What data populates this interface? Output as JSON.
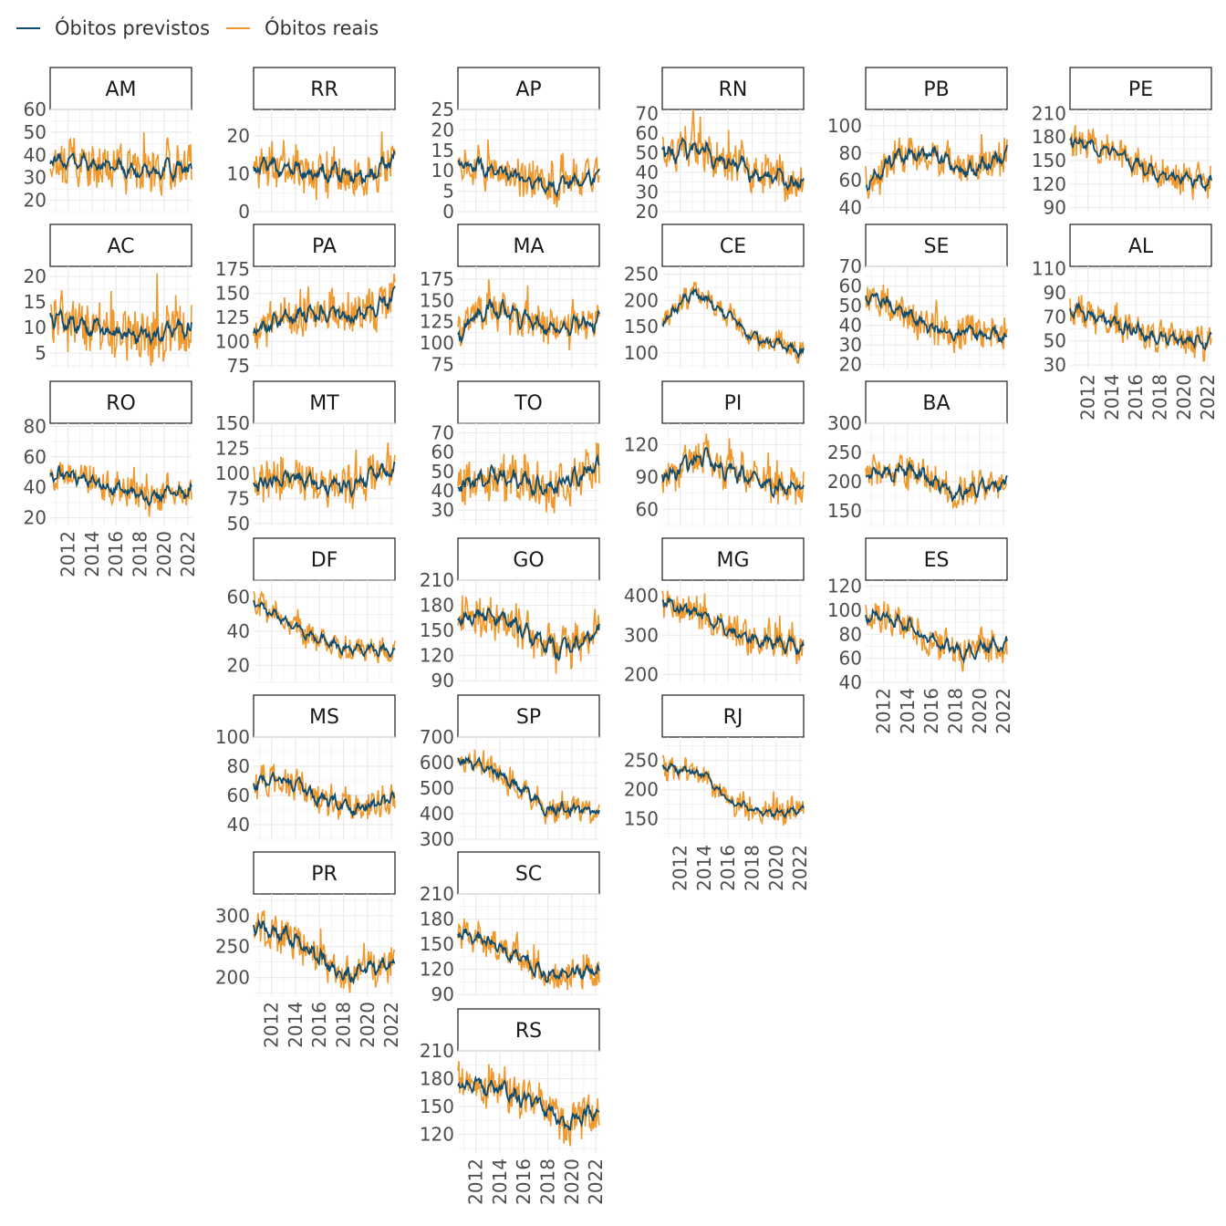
{
  "legend": {
    "predicted_label": "Óbitos previstos",
    "actual_label": "Óbitos reais"
  },
  "colors": {
    "predicted": "#0f4c6e",
    "actual": "#f0982c",
    "grid": "#ebebeb",
    "strip_border": "#1a1a1a",
    "text": "#4d4d4d"
  },
  "chart_data": {
    "type": "line",
    "layout": "geofacet small multiples (map of Brazil)",
    "series_names": [
      "Óbitos previstos",
      "Óbitos reais"
    ],
    "x_axis": {
      "min": 2010.5,
      "max": 2022.3,
      "ticks": [
        "2012",
        "2014",
        "2016",
        "2018",
        "2020",
        "2022"
      ]
    },
    "grid": true,
    "legend_position": "top-left",
    "panels": [
      {
        "id": "AM",
        "row": 0,
        "col": 0,
        "ylim": [
          15,
          60
        ],
        "yticks": [
          20,
          30,
          40,
          50,
          60
        ],
        "trend": [
          [
            2010.5,
            38
          ],
          [
            2013,
            37
          ],
          [
            2016,
            34
          ],
          [
            2019,
            33
          ],
          [
            2022.3,
            34
          ]
        ],
        "pred_noise": 3,
        "act_noise": 9,
        "x_axis": false
      },
      {
        "id": "RR",
        "row": 0,
        "col": 1,
        "ylim": [
          0,
          27
        ],
        "yticks": [
          0,
          10,
          20
        ],
        "trend": [
          [
            2010.5,
            12
          ],
          [
            2014,
            11
          ],
          [
            2017,
            10
          ],
          [
            2020,
            9
          ],
          [
            2022.3,
            14
          ]
        ],
        "pred_noise": 2,
        "act_noise": 5,
        "x_axis": false
      },
      {
        "id": "AP",
        "row": 0,
        "col": 2,
        "ylim": [
          0,
          25
        ],
        "yticks": [
          0,
          5,
          10,
          15,
          20,
          25
        ],
        "trend": [
          [
            2010.5,
            12
          ],
          [
            2014,
            10
          ],
          [
            2018,
            6
          ],
          [
            2022.3,
            9
          ]
        ],
        "pred_noise": 1.5,
        "act_noise": 4,
        "x_axis": false
      },
      {
        "id": "RN",
        "row": 0,
        "col": 3,
        "ylim": [
          20,
          72
        ],
        "yticks": [
          20,
          30,
          40,
          50,
          60,
          70
        ],
        "trend": [
          [
            2010.5,
            51
          ],
          [
            2014,
            50
          ],
          [
            2018,
            40
          ],
          [
            2022.3,
            33
          ]
        ],
        "pred_noise": 4,
        "act_noise": 9,
        "x_axis": false
      },
      {
        "id": "PB",
        "row": 0,
        "col": 4,
        "ylim": [
          37,
          112
        ],
        "yticks": [
          40,
          60,
          80,
          100
        ],
        "trend": [
          [
            2010.5,
            58
          ],
          [
            2013,
            78
          ],
          [
            2016,
            80
          ],
          [
            2019,
            65
          ],
          [
            2022.3,
            80
          ]
        ],
        "pred_noise": 5,
        "act_noise": 12,
        "x_axis": false
      },
      {
        "id": "PE",
        "row": 0,
        "col": 5,
        "ylim": [
          85,
          215
        ],
        "yticks": [
          90,
          120,
          150,
          180,
          210
        ],
        "trend": [
          [
            2010.5,
            175
          ],
          [
            2014,
            160
          ],
          [
            2018,
            130
          ],
          [
            2022.3,
            122
          ]
        ],
        "pred_noise": 7,
        "act_noise": 18,
        "x_axis": false
      },
      {
        "id": "AC",
        "row": 1,
        "col": 0,
        "ylim": [
          2,
          22
        ],
        "yticks": [
          5,
          10,
          15,
          20
        ],
        "trend": [
          [
            2010.5,
            12
          ],
          [
            2014,
            10
          ],
          [
            2018,
            8
          ],
          [
            2022.3,
            10
          ]
        ],
        "pred_noise": 1.5,
        "act_noise": 5,
        "x_axis": false
      },
      {
        "id": "PA",
        "row": 1,
        "col": 1,
        "ylim": [
          72,
          178
        ],
        "yticks": [
          75,
          100,
          125,
          150,
          175
        ],
        "trend": [
          [
            2010.5,
            110
          ],
          [
            2013,
            125
          ],
          [
            2016,
            130
          ],
          [
            2019,
            125
          ],
          [
            2022.3,
            145
          ]
        ],
        "pred_noise": 8,
        "act_noise": 20,
        "x_axis": false
      },
      {
        "id": "MA",
        "row": 1,
        "col": 2,
        "ylim": [
          70,
          190
        ],
        "yticks": [
          75,
          100,
          125,
          150,
          175
        ],
        "trend": [
          [
            2010.5,
            110
          ],
          [
            2013,
            140
          ],
          [
            2016,
            130
          ],
          [
            2019,
            115
          ],
          [
            2022.3,
            125
          ]
        ],
        "pred_noise": 9,
        "act_noise": 20,
        "x_axis": false
      },
      {
        "id": "CE",
        "row": 1,
        "col": 3,
        "ylim": [
          70,
          265
        ],
        "yticks": [
          100,
          150,
          200,
          250
        ],
        "trend": [
          [
            2010.5,
            160
          ],
          [
            2013,
            215
          ],
          [
            2015,
            190
          ],
          [
            2018,
            130
          ],
          [
            2022.3,
            100
          ]
        ],
        "pred_noise": 9,
        "act_noise": 18,
        "x_axis": false
      },
      {
        "id": "SE",
        "row": 1,
        "col": 4,
        "ylim": [
          18,
          70
        ],
        "yticks": [
          20,
          30,
          40,
          50,
          60,
          70
        ],
        "trend": [
          [
            2010.5,
            55
          ],
          [
            2013,
            50
          ],
          [
            2016,
            38
          ],
          [
            2022.3,
            34
          ]
        ],
        "pred_noise": 3,
        "act_noise": 8,
        "x_axis": false
      },
      {
        "id": "AL",
        "row": 1,
        "col": 5,
        "ylim": [
          27,
          112
        ],
        "yticks": [
          30,
          50,
          70,
          90,
          110
        ],
        "trend": [
          [
            2010.5,
            75
          ],
          [
            2014,
            65
          ],
          [
            2018,
            52
          ],
          [
            2022.3,
            50
          ]
        ],
        "pred_noise": 5,
        "act_noise": 11,
        "x_axis": true
      },
      {
        "id": "RO",
        "row": 2,
        "col": 0,
        "ylim": [
          15,
          82
        ],
        "yticks": [
          20,
          40,
          60,
          80
        ],
        "trend": [
          [
            2010.5,
            50
          ],
          [
            2014,
            45
          ],
          [
            2018,
            33
          ],
          [
            2022.3,
            38
          ]
        ],
        "pred_noise": 4,
        "act_noise": 9,
        "x_axis": true
      },
      {
        "id": "MT",
        "row": 2,
        "col": 1,
        "ylim": [
          48,
          150
        ],
        "yticks": [
          50,
          75,
          100,
          125,
          150
        ],
        "trend": [
          [
            2010.5,
            88
          ],
          [
            2014,
            95
          ],
          [
            2018,
            85
          ],
          [
            2022.3,
            105
          ]
        ],
        "pred_noise": 7,
        "act_noise": 17,
        "x_axis": false
      },
      {
        "id": "TO",
        "row": 2,
        "col": 2,
        "ylim": [
          22,
          75
        ],
        "yticks": [
          30,
          40,
          50,
          60,
          70
        ],
        "trend": [
          [
            2010.5,
            42
          ],
          [
            2014,
            48
          ],
          [
            2018,
            42
          ],
          [
            2022.3,
            52
          ]
        ],
        "pred_noise": 4,
        "act_noise": 11,
        "x_axis": false
      },
      {
        "id": "PI",
        "row": 2,
        "col": 3,
        "ylim": [
          45,
          140
        ],
        "yticks": [
          60,
          90,
          120
        ],
        "trend": [
          [
            2010.5,
            90
          ],
          [
            2014,
            110
          ],
          [
            2018,
            85
          ],
          [
            2022.3,
            78
          ]
        ],
        "pred_noise": 7,
        "act_noise": 14,
        "x_axis": false
      },
      {
        "id": "BA",
        "row": 2,
        "col": 4,
        "ylim": [
          125,
          300
        ],
        "yticks": [
          150,
          200,
          250,
          300
        ],
        "trend": [
          [
            2010.5,
            215
          ],
          [
            2014,
            220
          ],
          [
            2018,
            180
          ],
          [
            2022.3,
            195
          ]
        ],
        "pred_noise": 12,
        "act_noise": 24,
        "x_axis": false
      },
      {
        "id": "DF",
        "row": 3,
        "col": 1,
        "ylim": [
          10,
          70
        ],
        "yticks": [
          20,
          40,
          60
        ],
        "trend": [
          [
            2010.5,
            58
          ],
          [
            2014,
            42
          ],
          [
            2018,
            30
          ],
          [
            2022.3,
            28
          ]
        ],
        "pred_noise": 2.5,
        "act_noise": 6,
        "x_axis": false
      },
      {
        "id": "GO",
        "row": 3,
        "col": 2,
        "ylim": [
          88,
          210
        ],
        "yticks": [
          90,
          120,
          150,
          180,
          210
        ],
        "trend": [
          [
            2010.5,
            160
          ],
          [
            2013,
            170
          ],
          [
            2016,
            150
          ],
          [
            2019,
            125
          ],
          [
            2022.3,
            150
          ]
        ],
        "pred_noise": 9,
        "act_noise": 20,
        "x_axis": false
      },
      {
        "id": "MG",
        "row": 3,
        "col": 3,
        "ylim": [
          180,
          440
        ],
        "yticks": [
          200,
          300,
          400
        ],
        "trend": [
          [
            2010.5,
            385
          ],
          [
            2014,
            350
          ],
          [
            2018,
            290
          ],
          [
            2022.3,
            265
          ]
        ],
        "pred_noise": 15,
        "act_noise": 35,
        "x_axis": false
      },
      {
        "id": "ES",
        "row": 3,
        "col": 4,
        "ylim": [
          40,
          125
        ],
        "yticks": [
          40,
          60,
          80,
          100,
          120
        ],
        "trend": [
          [
            2010.5,
            98
          ],
          [
            2014,
            88
          ],
          [
            2018,
            65
          ],
          [
            2022.3,
            72
          ]
        ],
        "pred_noise": 5,
        "act_noise": 12,
        "x_axis": true
      },
      {
        "id": "MS",
        "row": 4,
        "col": 1,
        "ylim": [
          30,
          100
        ],
        "yticks": [
          40,
          60,
          80,
          100
        ],
        "trend": [
          [
            2010.5,
            68
          ],
          [
            2013,
            72
          ],
          [
            2016,
            58
          ],
          [
            2019,
            50
          ],
          [
            2022.3,
            58
          ]
        ],
        "pred_noise": 4,
        "act_noise": 9,
        "x_axis": false
      },
      {
        "id": "SP",
        "row": 4,
        "col": 2,
        "ylim": [
          300,
          700
        ],
        "yticks": [
          300,
          400,
          500,
          600,
          700
        ],
        "trend": [
          [
            2010.5,
            610
          ],
          [
            2014,
            560
          ],
          [
            2018,
            420
          ],
          [
            2022.3,
            410
          ]
        ],
        "pred_noise": 20,
        "act_noise": 45,
        "x_axis": false
      },
      {
        "id": "RJ",
        "row": 4,
        "col": 3,
        "ylim": [
          115,
          290
        ],
        "yticks": [
          150,
          200,
          250
        ],
        "trend": [
          [
            2010.5,
            240
          ],
          [
            2014,
            225
          ],
          [
            2016,
            180
          ],
          [
            2019,
            160
          ],
          [
            2022.3,
            165
          ]
        ],
        "pred_noise": 6,
        "act_noise": 18,
        "x_axis": true
      },
      {
        "id": "PR",
        "row": 5,
        "col": 1,
        "ylim": [
          170,
          335
        ],
        "yticks": [
          200,
          250,
          300
        ],
        "trend": [
          [
            2010.5,
            285
          ],
          [
            2014,
            265
          ],
          [
            2018,
            200
          ],
          [
            2022.3,
            225
          ]
        ],
        "pred_noise": 12,
        "act_noise": 25,
        "x_axis": true
      },
      {
        "id": "SC",
        "row": 5,
        "col": 2,
        "ylim": [
          88,
          210
        ],
        "yticks": [
          90,
          120,
          150,
          180,
          210
        ],
        "trend": [
          [
            2010.5,
            165
          ],
          [
            2014,
            145
          ],
          [
            2018,
            115
          ],
          [
            2022.3,
            118
          ]
        ],
        "pred_noise": 8,
        "act_noise": 16,
        "x_axis": false
      },
      {
        "id": "RS",
        "row": 6,
        "col": 2,
        "ylim": [
          100,
          210
        ],
        "yticks": [
          120,
          150,
          180,
          210
        ],
        "trend": [
          [
            2010.5,
            175
          ],
          [
            2014,
            170
          ],
          [
            2018,
            145
          ],
          [
            2020,
            130
          ],
          [
            2022.3,
            150
          ]
        ],
        "pred_noise": 8,
        "act_noise": 18,
        "x_axis": true
      }
    ]
  }
}
